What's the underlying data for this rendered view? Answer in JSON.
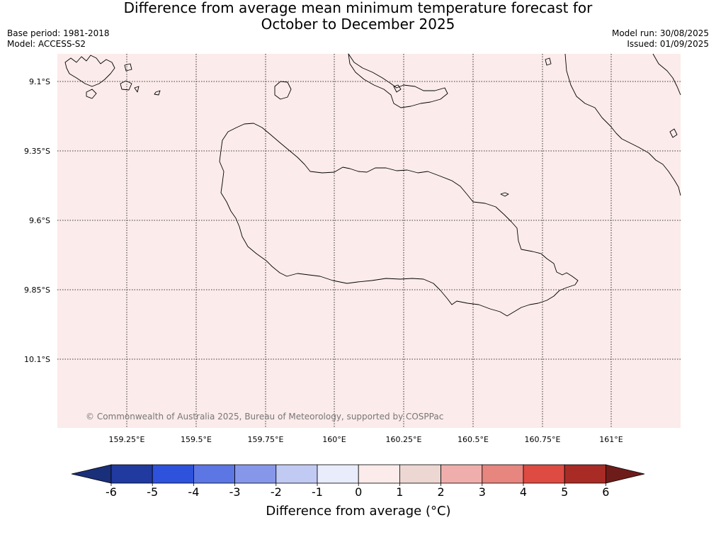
{
  "title": {
    "line1": "Difference from average mean minimum temperature forecast for",
    "line2": "October to December 2025"
  },
  "meta": {
    "base_period": "Base period: 1981-2018",
    "model": "Model: ACCESS-S2",
    "model_run": "Model run: 30/08/2025",
    "issued": "Issued: 01/09/2025"
  },
  "map": {
    "background_color": "#fbebea",
    "lat_labels": [
      "9.1°S",
      "9.35°S",
      "9.6°S",
      "9.85°S",
      "10.1°S"
    ],
    "lon_labels": [
      "159.25°E",
      "159.5°E",
      "159.75°E",
      "160°E",
      "160.25°E",
      "160.5°E",
      "160.75°E",
      "161°E"
    ],
    "copyright": "© Commonwealth of Australia 2025, Bureau of Meteorology, supported by COSPPac"
  },
  "colorbar": {
    "title": "Difference from average (°C)",
    "tick_labels": [
      "-6",
      "-5",
      "-4",
      "-3",
      "-2",
      "-1",
      "0",
      "1",
      "2",
      "3",
      "4",
      "5",
      "6"
    ],
    "colors": [
      "#203aa0",
      "#2e52dc",
      "#5c76e4",
      "#8697ea",
      "#c1caf3",
      "#e8ecfb",
      "#fbebea",
      "#ecd7d3",
      "#efaeab",
      "#e7857f",
      "#dd4b42",
      "#a82b25"
    ],
    "under_color": "#1a2f7a",
    "over_color": "#6e1c1a"
  }
}
